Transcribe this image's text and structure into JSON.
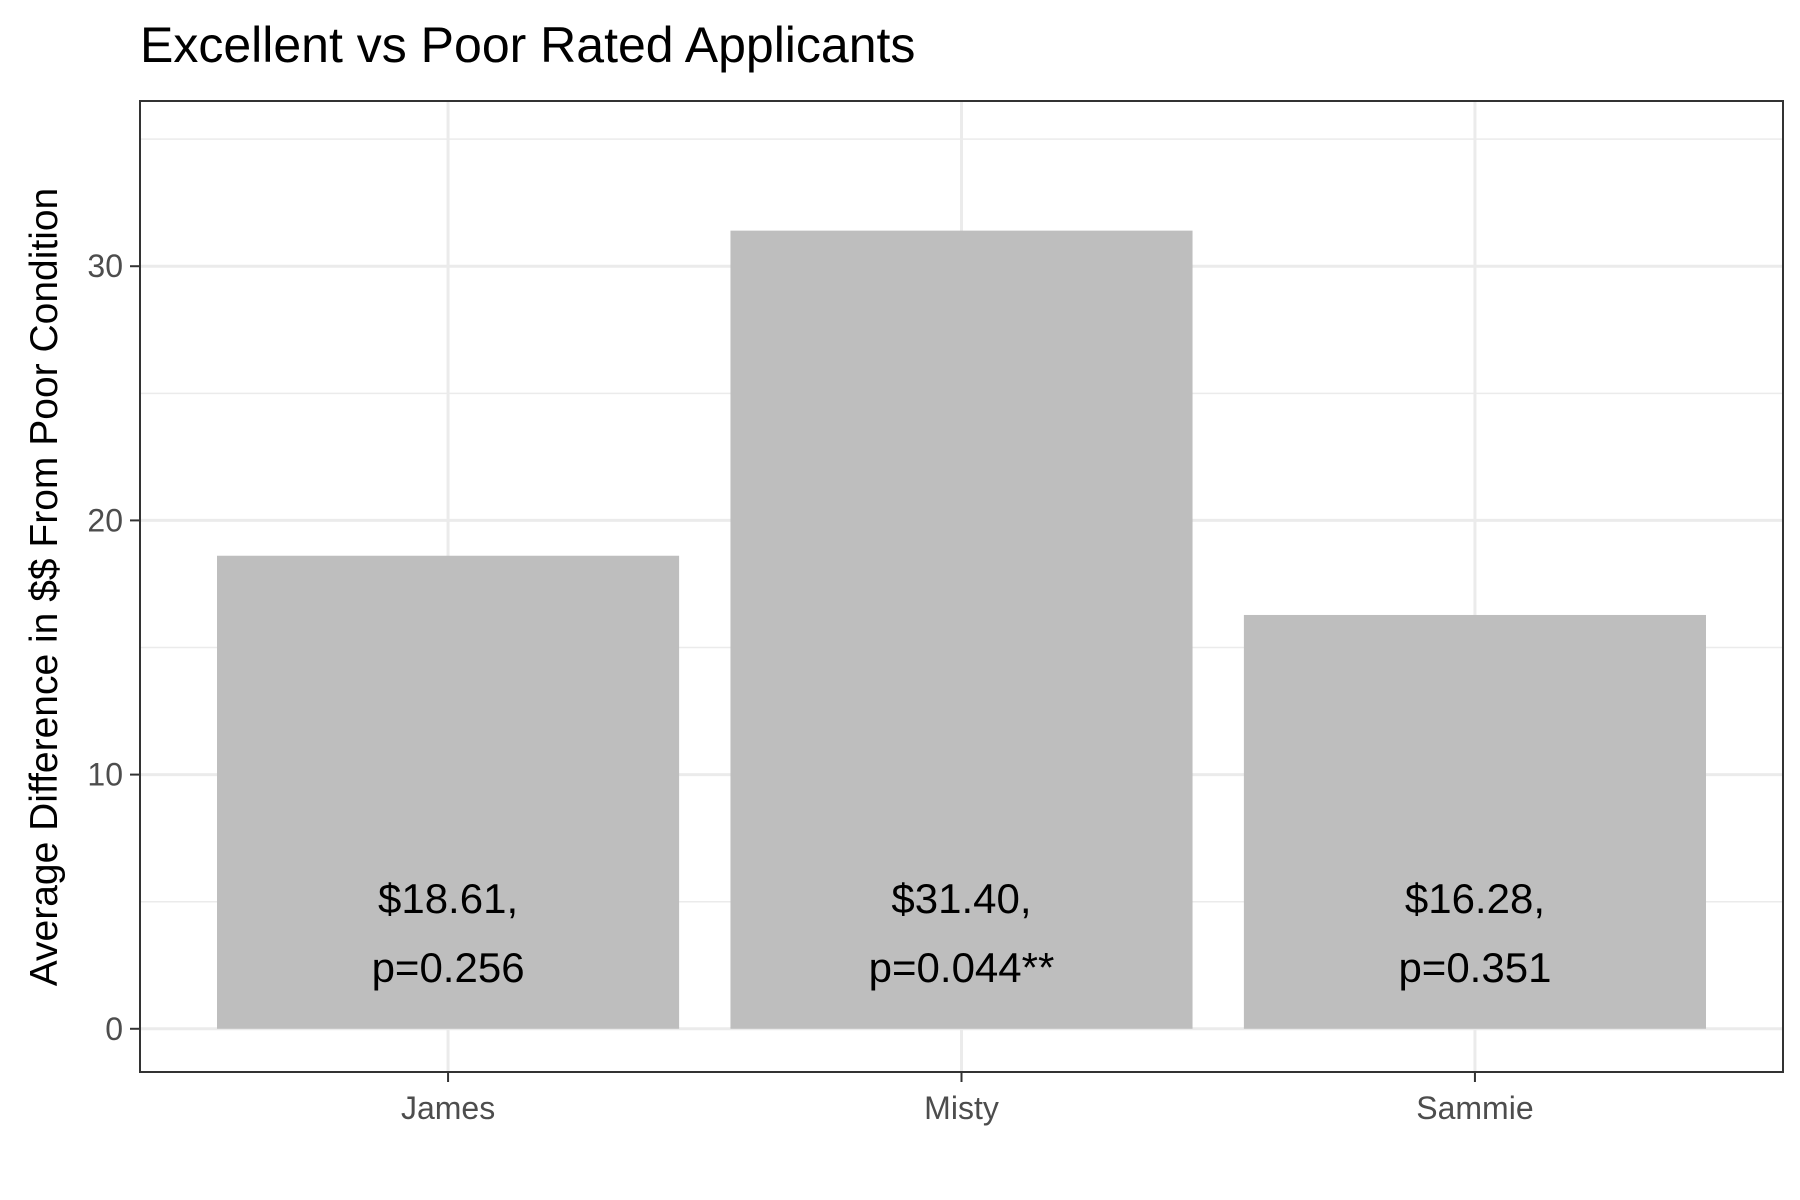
{
  "chart_data": {
    "type": "bar",
    "title": "Excellent vs Poor Rated Applicants",
    "xlabel": "",
    "ylabel": "Average Difference in $$ From Poor Condition",
    "categories": [
      "James",
      "Misty",
      "Sammie"
    ],
    "values": [
      18.61,
      31.4,
      16.28
    ],
    "labels": [
      [
        "$18.61,",
        "p=0.256"
      ],
      [
        "$31.40,",
        "p=0.044**"
      ],
      [
        "$16.28,",
        "p=0.351"
      ]
    ],
    "ylim": [
      -1.7,
      36.5
    ],
    "yticks": [
      0,
      10,
      20,
      30
    ],
    "grid": true,
    "legend": "none",
    "colors": {
      "bar": "#bebebe",
      "grid": "#ebebeb",
      "panel_border": "#333333",
      "tick_text": "#4d4d4d"
    }
  }
}
